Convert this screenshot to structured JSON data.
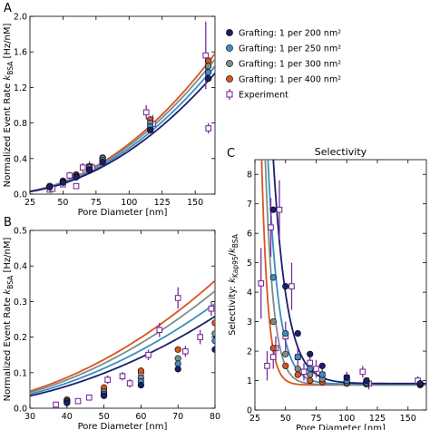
{
  "figure": {
    "panel_letters": [
      "A",
      "B",
      "C"
    ],
    "colors": {
      "grafting_200": "#1a1f6b",
      "grafting_250": "#3a8fc0",
      "grafting_300": "#7f8c8d",
      "grafting_400": "#d9541e",
      "experiment": "#7b2d9e"
    }
  },
  "legend": {
    "placement": "between panels A and C",
    "entries": [
      {
        "key": "grafting_200",
        "label": "Grafting: 1 per 200 nm²",
        "marker": "circle"
      },
      {
        "key": "grafting_250",
        "label": "Grafting: 1 per 250 nm²",
        "marker": "circle"
      },
      {
        "key": "grafting_300",
        "label": "Grafting: 1 per 300 nm²",
        "marker": "circle"
      },
      {
        "key": "grafting_400",
        "label": "Grafting: 1 per 400 nm²",
        "marker": "circle"
      },
      {
        "key": "experiment",
        "label": "Experiment",
        "marker": "open-square-errorbar"
      }
    ]
  },
  "chart_data": [
    {
      "panel": "A",
      "type": "scatter",
      "title": "",
      "xlabel": "Pore Diameter [nm]",
      "ylabel": "Normalized Event Rate k_BSA [Hz/nM]",
      "ylabel_parts": [
        "Normalized Event Rate ",
        "k",
        "BSA",
        " [Hz/nM]"
      ],
      "xlim": [
        25,
        165
      ],
      "ylim": [
        0,
        2.0
      ],
      "xticks": [
        "25",
        "50",
        "75",
        "100",
        "125",
        "150"
      ],
      "xtick_values": [
        25,
        50,
        75,
        100,
        125,
        150
      ],
      "yticks": [
        "0.0",
        "0.4",
        "0.8",
        "1.2",
        "1.6",
        "2.0"
      ],
      "ytick_values": [
        0,
        0.4,
        0.8,
        1.2,
        1.6,
        2.0
      ],
      "curve": {
        "a": 4.5e-05,
        "p": 2.05,
        "x_from": 25,
        "x_to": 165,
        "factors": {
          "grafting_200": 0.86,
          "grafting_250": 0.91,
          "grafting_300": 0.96,
          "grafting_400": 1.0
        }
      },
      "series": [
        {
          "key": "grafting_200",
          "x": [
            40,
            50,
            60,
            70,
            80,
            116,
            160
          ],
          "y": [
            0.08,
            0.13,
            0.19,
            0.27,
            0.36,
            0.72,
            1.3
          ]
        },
        {
          "key": "grafting_250",
          "x": [
            40,
            50,
            60,
            70,
            80,
            116,
            160
          ],
          "y": [
            0.08,
            0.14,
            0.2,
            0.28,
            0.38,
            0.76,
            1.37
          ]
        },
        {
          "key": "grafting_300",
          "x": [
            40,
            50,
            60,
            70,
            80,
            116,
            160
          ],
          "y": [
            0.09,
            0.14,
            0.21,
            0.3,
            0.4,
            0.8,
            1.44
          ]
        },
        {
          "key": "grafting_400",
          "x": [
            40,
            50,
            60,
            70,
            80,
            116,
            160
          ],
          "y": [
            0.09,
            0.15,
            0.22,
            0.31,
            0.41,
            0.84,
            1.5
          ]
        }
      ],
      "experiment": {
        "x": [
          40,
          42,
          50,
          55,
          60,
          65,
          70,
          72,
          80,
          113,
          118,
          158,
          160
        ],
        "y": [
          0.05,
          0.06,
          0.11,
          0.21,
          0.09,
          0.3,
          0.31,
          0.3,
          0.36,
          0.92,
          0.79,
          1.56,
          0.74
        ],
        "err": [
          0.02,
          0.02,
          0.03,
          0.04,
          0.03,
          0.05,
          0.06,
          0.05,
          0.06,
          0.08,
          0.1,
          0.38,
          0.06
        ]
      }
    },
    {
      "panel": "B",
      "type": "scatter",
      "title": "",
      "xlabel": "Pore Diameter [nm]",
      "ylabel": "Normalized Event Rate k_BSA [Hz/nM]",
      "ylabel_parts": [
        "Normalized Event Rate ",
        "k",
        "BSA",
        " [Hz/nM]"
      ],
      "xlim": [
        30,
        80
      ],
      "ylim": [
        0,
        0.5
      ],
      "xticks": [
        "30",
        "40",
        "50",
        "60",
        "70",
        "80"
      ],
      "xtick_values": [
        30,
        40,
        50,
        60,
        70,
        80
      ],
      "yticks": [
        "0.0",
        "0.1",
        "0.2",
        "0.3",
        "0.4",
        "0.5"
      ],
      "ytick_values": [
        0,
        0.1,
        0.2,
        0.3,
        0.4,
        0.5
      ],
      "curve": {
        "a": 4.5e-05,
        "p": 2.05,
        "x_from": 30,
        "x_to": 80,
        "factors": {
          "grafting_200": 0.72,
          "grafting_250": 0.82,
          "grafting_300": 0.92,
          "grafting_400": 1.0
        }
      },
      "series": [
        {
          "key": "grafting_200",
          "x": [
            40,
            50,
            60,
            70,
            80
          ],
          "y": [
            0.015,
            0.035,
            0.065,
            0.11,
            0.165
          ]
        },
        {
          "key": "grafting_250",
          "x": [
            40,
            50,
            60,
            70,
            80
          ],
          "y": [
            0.018,
            0.04,
            0.075,
            0.125,
            0.19
          ]
        },
        {
          "key": "grafting_300",
          "x": [
            40,
            50,
            60,
            70,
            80
          ],
          "y": [
            0.02,
            0.046,
            0.085,
            0.14,
            0.21
          ]
        },
        {
          "key": "grafting_400",
          "x": [
            40,
            50,
            60,
            70,
            80
          ],
          "y": [
            0.024,
            0.058,
            0.105,
            0.165,
            0.24
          ]
        }
      ],
      "experiment": {
        "x": [
          37,
          40,
          43,
          46,
          50,
          51,
          55,
          57,
          60,
          62,
          65,
          70,
          72,
          76,
          79
        ],
        "y": [
          0.01,
          0.02,
          0.02,
          0.03,
          0.05,
          0.08,
          0.09,
          0.07,
          0.1,
          0.15,
          0.22,
          0.31,
          0.16,
          0.2,
          0.28
        ],
        "err": [
          0.005,
          0.006,
          0.006,
          0.008,
          0.01,
          0.012,
          0.012,
          0.012,
          0.015,
          0.015,
          0.02,
          0.03,
          0.015,
          0.02,
          0.02
        ]
      }
    },
    {
      "panel": "C",
      "type": "scatter",
      "title": "Selectivity",
      "xlabel": "Pore Diameter [nm]",
      "ylabel": "Selectivity: k_Kap95/k_BSA",
      "ylabel_parts": [
        "Selectivity: ",
        "k",
        "Kap95",
        "/",
        "k",
        "BSA"
      ],
      "xlim": [
        25,
        165
      ],
      "ylim": [
        0,
        8.5
      ],
      "xticks": [
        "25",
        "50",
        "75",
        "100",
        "125",
        "150"
      ],
      "xtick_values": [
        25,
        50,
        75,
        100,
        125,
        150
      ],
      "yticks": [
        "0",
        "1",
        "2",
        "3",
        "4",
        "5",
        "6",
        "7",
        "8"
      ],
      "ytick_values": [
        0,
        1,
        2,
        3,
        4,
        5,
        6,
        7,
        8
      ],
      "curve": {
        "x_from": 25,
        "x_to": 165
      },
      "series": [
        {
          "key": "grafting_200",
          "x": [
            40,
            50,
            60,
            70,
            80,
            100,
            116,
            160
          ],
          "y": [
            6.8,
            4.2,
            2.6,
            1.9,
            1.5,
            1.1,
            1.0,
            0.9
          ],
          "fit": {
            "A": 290,
            "b": 0.091,
            "c": 0.9
          }
        },
        {
          "key": "grafting_250",
          "x": [
            40,
            50,
            60,
            70,
            80,
            100,
            116,
            160
          ],
          "y": [
            4.5,
            2.6,
            1.8,
            1.4,
            1.2,
            1.0,
            0.95,
            0.9
          ],
          "fit": {
            "A": 460,
            "b": 0.115,
            "c": 0.88
          }
        },
        {
          "key": "grafting_300",
          "x": [
            40,
            50,
            60,
            70,
            80,
            100,
            116,
            160
          ],
          "y": [
            3.0,
            1.9,
            1.4,
            1.2,
            1.05,
            0.95,
            0.9,
            0.88
          ],
          "fit": {
            "A": 1150,
            "b": 0.15,
            "c": 0.86
          }
        },
        {
          "key": "grafting_400",
          "x": [
            40,
            50,
            60,
            70,
            80,
            100,
            116,
            160
          ],
          "y": [
            2.1,
            1.5,
            1.2,
            1.0,
            0.95,
            0.9,
            0.88,
            0.85
          ],
          "fit": {
            "A": 2900,
            "b": 0.195,
            "c": 0.85
          }
        }
      ],
      "experiment": {
        "x": [
          30,
          35,
          38,
          40,
          42,
          45,
          50,
          55,
          60,
          65,
          70,
          75,
          80,
          100,
          113,
          118,
          158
        ],
        "y": [
          4.3,
          1.5,
          6.2,
          1.8,
          2.1,
          6.8,
          2.5,
          4.2,
          1.8,
          1.3,
          1.6,
          1.4,
          1.2,
          1.1,
          1.3,
          0.9,
          1.0
        ],
        "err": [
          1.2,
          0.5,
          1.0,
          0.4,
          0.4,
          1.0,
          0.5,
          0.8,
          0.3,
          0.3,
          0.3,
          0.3,
          0.2,
          0.2,
          0.2,
          0.2,
          0.15
        ]
      }
    }
  ]
}
